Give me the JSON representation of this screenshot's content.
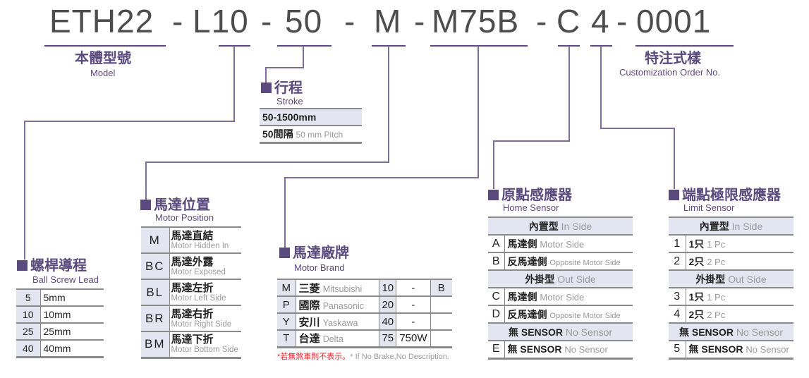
{
  "code": {
    "parts": [
      "ETH22",
      "-",
      "L10",
      "-",
      "50",
      "-",
      "M",
      "-",
      "M75B",
      "-",
      "C",
      "4",
      "-",
      "0001"
    ]
  },
  "model": {
    "title": "本體型號",
    "sub": "Model"
  },
  "custom": {
    "title": "特注式樣",
    "sub": "Customization Order No."
  },
  "stroke": {
    "title": "行程",
    "sub": "Stroke",
    "rows": [
      {
        "a": "50-1500mm",
        "b": ""
      },
      {
        "a": "50間隔",
        "b": "50 mm Pitch"
      }
    ]
  },
  "lead": {
    "title": "螺桿導程",
    "sub": "Ball Screw Lead",
    "rows": [
      [
        "5",
        "5mm"
      ],
      [
        "10",
        "10mm"
      ],
      [
        "25",
        "25mm"
      ],
      [
        "40",
        "40mm"
      ]
    ]
  },
  "position": {
    "title": "馬達位置",
    "sub": "Motor Position",
    "rows": [
      [
        "M",
        "馬達直結",
        "Motor Hidden In"
      ],
      [
        "BC",
        "馬達外露",
        "Motor Exposed"
      ],
      [
        "BL",
        "馬達左折",
        "Motor Left Side"
      ],
      [
        "BR",
        "馬達右折",
        "Motor Right Side"
      ],
      [
        "BM",
        "馬達下折",
        "Motor Bottom Side"
      ]
    ]
  },
  "brand": {
    "title": "馬達廠牌",
    "sub": "Motor Brand",
    "rows": [
      [
        "M",
        "三菱",
        "Mitsubishi",
        "10",
        "-",
        "B"
      ],
      [
        "P",
        "國際",
        "Panasonic",
        "20",
        "-",
        ""
      ],
      [
        "Y",
        "安川",
        "Yaskawa",
        "40",
        "-",
        ""
      ],
      [
        "T",
        "台達",
        "Delta",
        "75",
        "750W",
        ""
      ]
    ],
    "note_red": "*若無煞車則不表示。",
    "note_gray": "* If No Brake,No Description."
  },
  "home": {
    "title": "原點感應器",
    "sub": "Home Sensor",
    "rows": [
      {
        "h": "內置型",
        "hs": "In Side"
      },
      {
        "k": "A",
        "c": "馬達側",
        "e": "Motor Side"
      },
      {
        "k": "B",
        "c": "反馬達側",
        "e": "Opposite Motor Side"
      },
      {
        "h": "外掛型",
        "hs": "Out Side"
      },
      {
        "k": "C",
        "c": "馬達側",
        "e": "Motor Side"
      },
      {
        "k": "D",
        "c": "反馬達側",
        "e": "Opposite Motor Side"
      },
      {
        "h": "無 SENSOR",
        "hs": "No Sensor"
      },
      {
        "k": "E",
        "c": "無 SENSOR",
        "e": "No Sensor"
      }
    ]
  },
  "limit": {
    "title": "端點極限感應器",
    "sub": "Limit Sensor",
    "rows": [
      {
        "h": "內置型",
        "hs": "In Side"
      },
      {
        "k": "1",
        "c": "1只",
        "e": "1 Pc"
      },
      {
        "k": "2",
        "c": "2只",
        "e": "2 Pc"
      },
      {
        "h": "外掛型",
        "hs": "Out Side"
      },
      {
        "k": "3",
        "c": "1只",
        "e": "1 Pc"
      },
      {
        "k": "4",
        "c": "2只",
        "e": "2 Pc"
      },
      {
        "h": "無 SENSOR",
        "hs": "No Sensor"
      },
      {
        "k": "5",
        "c": "無 SENSOR",
        "e": "No Sensor"
      }
    ]
  },
  "colors": {
    "accent": "#5b4a7e",
    "header_bg": "#e3e5f1",
    "note_red": "#e0262b"
  }
}
